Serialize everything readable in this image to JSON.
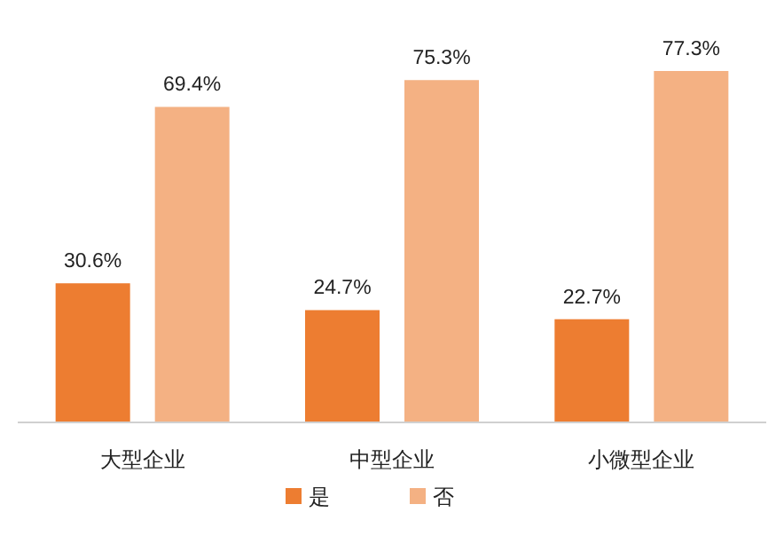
{
  "chart_data": {
    "type": "bar",
    "categories": [
      "大型企业",
      "中型企业",
      "小微型企业"
    ],
    "series": [
      {
        "name": "是",
        "color": "#ed7d31",
        "values": [
          30.6,
          24.7,
          22.7
        ],
        "value_labels": [
          "30.6%",
          "24.7%",
          "22.7%"
        ]
      },
      {
        "name": "否",
        "color": "#f4b183",
        "values": [
          69.4,
          75.3,
          77.3
        ],
        "value_labels": [
          "69.4%",
          "75.3%",
          "77.3%"
        ]
      }
    ],
    "legend": "bottom"
  }
}
